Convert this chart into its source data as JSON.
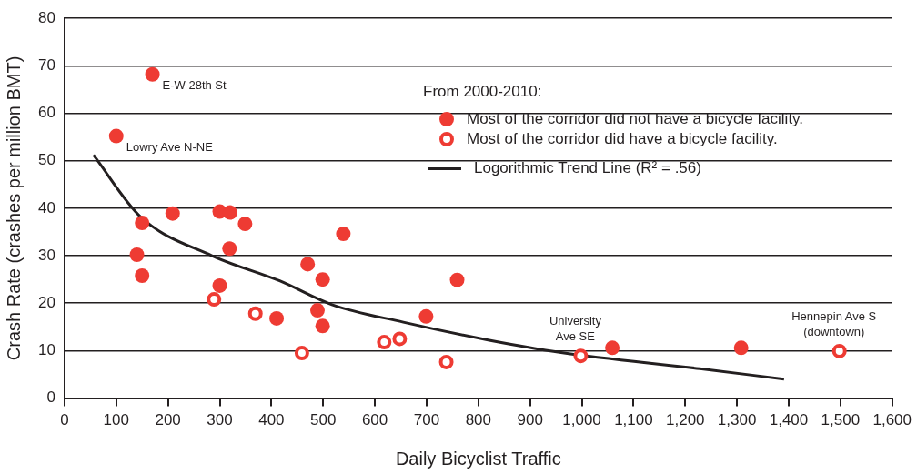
{
  "chart_data": {
    "type": "scatter",
    "xlabel": "Daily Bicyclist Traffic",
    "ylabel": "Crash Rate (crashes per million BMT)",
    "legend_title": "From 2000-2010:",
    "legend": "top right",
    "grid": "y",
    "marker": "circle",
    "xlim": [
      0,
      1600
    ],
    "xticks": [
      0,
      100,
      200,
      300,
      400,
      500,
      600,
      700,
      800,
      900,
      {
        "value": 1000,
        "label": "1,000"
      },
      {
        "value": 1100,
        "label": "1,100"
      },
      {
        "value": 1200,
        "label": "1,200"
      },
      {
        "value": 1300,
        "label": "1,300"
      },
      {
        "value": 1400,
        "label": "1,400"
      },
      {
        "value": 1500,
        "label": "1,500"
      },
      {
        "value": 1600,
        "label": "1,600"
      }
    ],
    "ylim": [
      0,
      80
    ],
    "yticks": [
      0,
      10,
      20,
      30,
      40,
      50,
      60,
      70,
      80
    ],
    "series": [
      {
        "name": "Most of the corridor did not have a bicycle facility.",
        "color": "#ee3b33",
        "x": [
          170,
          100,
          150,
          140,
          150,
          209,
          300,
          320,
          349,
          319,
          300,
          410,
          470,
          499,
          539,
          489,
          499,
          699,
          759,
          1059,
          1308
        ],
        "values": [
          68.2,
          55.2,
          36.9,
          30.2,
          25.8,
          38.9,
          39.3,
          39.1,
          36.7,
          31.5,
          23.7,
          16.8,
          28.2,
          25,
          34.6,
          18.5,
          15.2,
          17.2,
          24.9,
          10.6,
          10.6
        ]
      },
      {
        "name": "Most of the corridor did have a bicycle facility.",
        "color": "#ee3b33",
        "x": [
          289,
          369,
          459,
          618,
          648,
          738,
          998,
          1498
        ],
        "values": [
          20.8,
          17.8,
          9.5,
          11.8,
          12.5,
          7.6,
          8.9,
          9.9
        ]
      },
      {
        "name": "Logorithmic Trend Line (R² = .56)",
        "type": "line",
        "marker": "none",
        "color": "#231f20",
        "x": [
          56,
          147,
          285,
          416,
          517,
          655,
          821,
          960,
          1228,
          1391
        ],
        "values": [
          51.2,
          38.2,
          30.0,
          24.7,
          19.7,
          16.0,
          12.2,
          9.6,
          6.2,
          4.0
        ]
      }
    ],
    "annotations": [
      {
        "text": "E-W 28th St",
        "x": 170,
        "y": 68.2
      },
      {
        "text": "Lowry Ave N-NE",
        "x": 100,
        "y": 55.2
      },
      {
        "text": "University\nAve SE",
        "x": 998,
        "y": 8.9
      },
      {
        "text": "Hennepin Ave S\n(downtown)",
        "x": 1498,
        "y": 9.9
      }
    ]
  }
}
